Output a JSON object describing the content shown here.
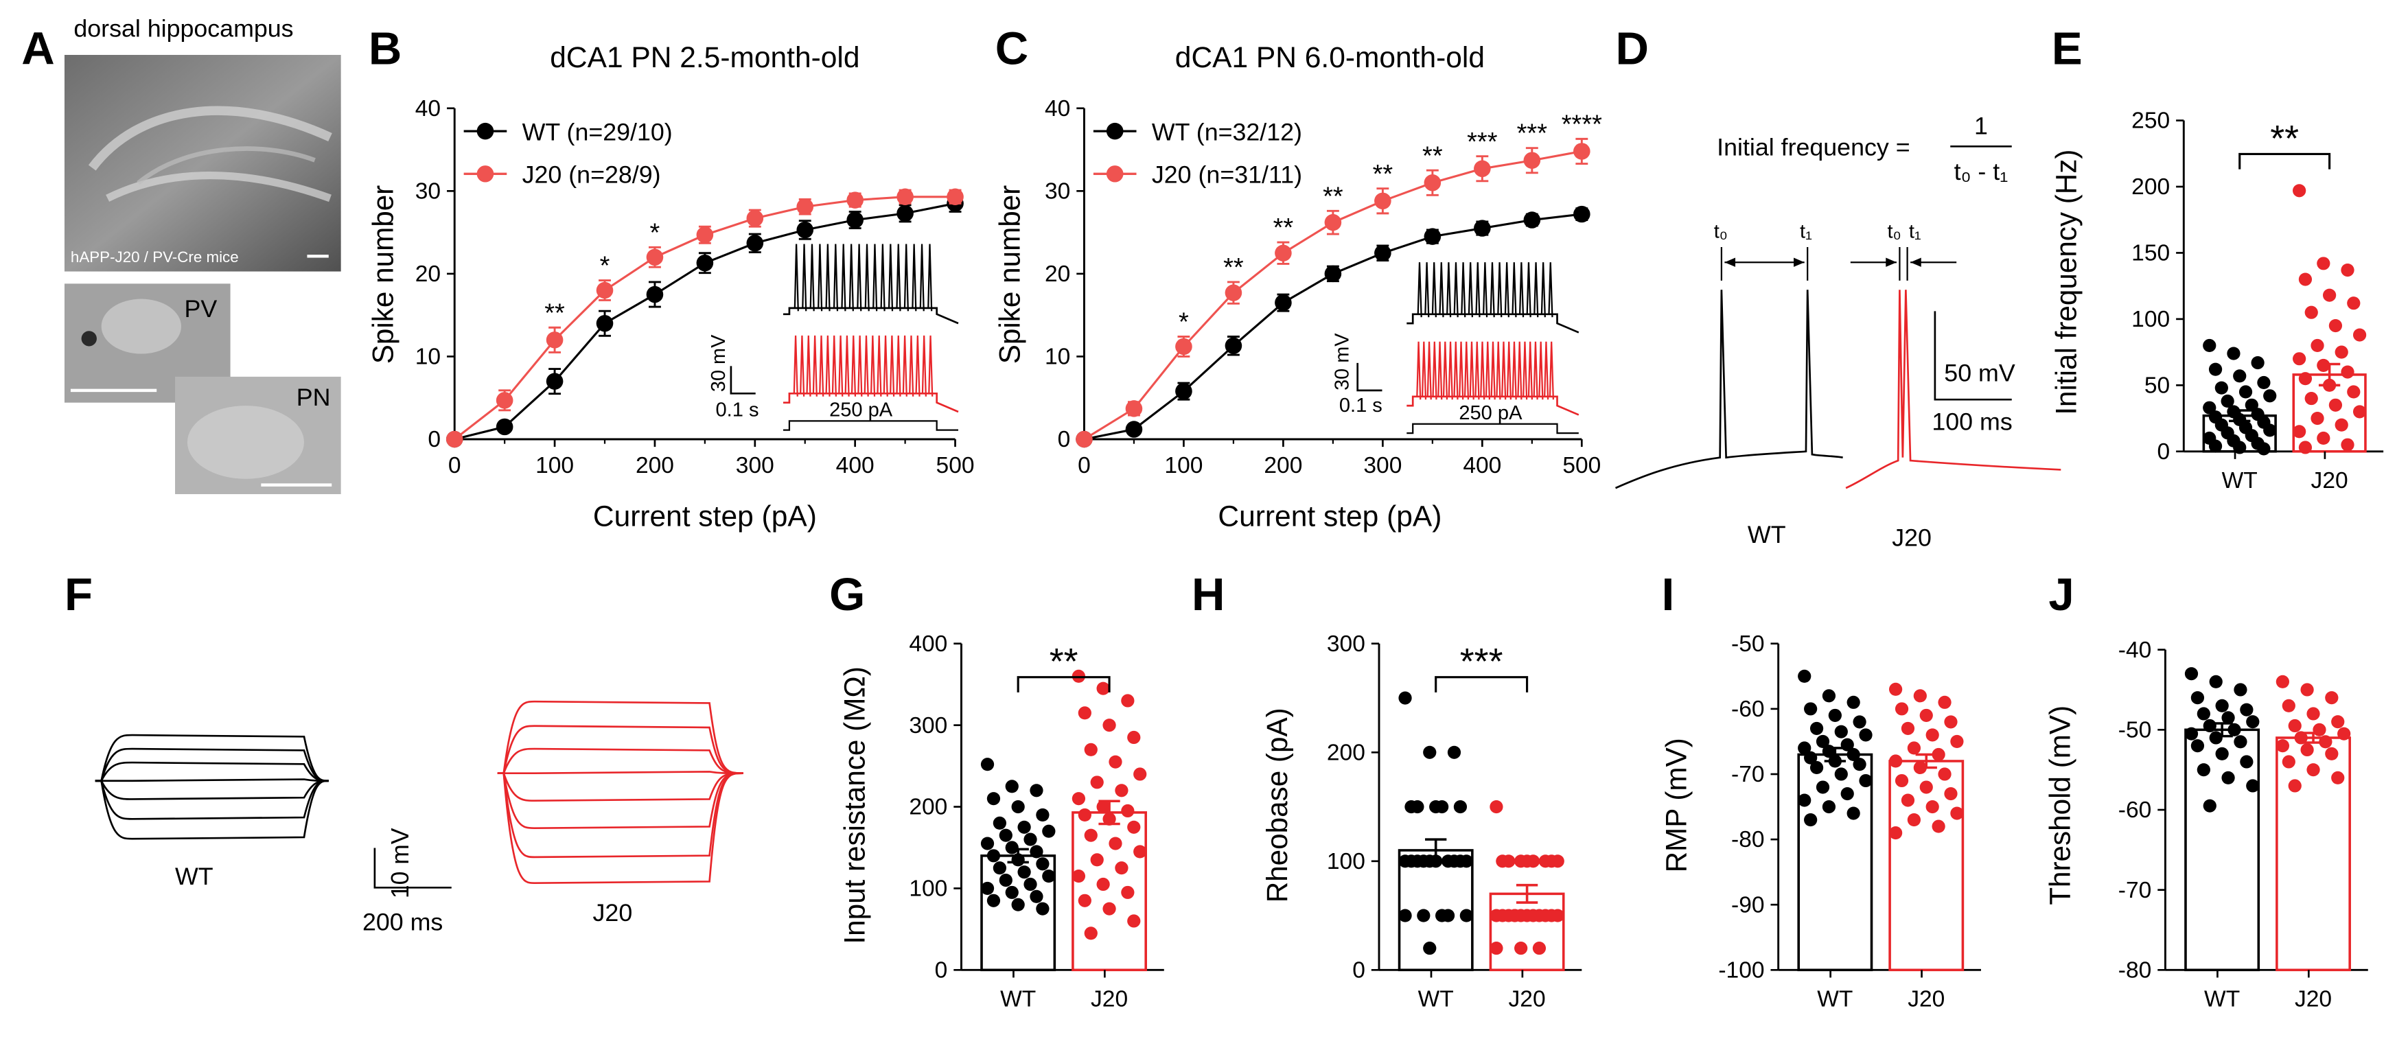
{
  "colors": {
    "wt": "#000000",
    "j20": "#e8262a",
    "j20_light": "#ef5350"
  },
  "panel_letters": [
    "A",
    "B",
    "C",
    "D",
    "E",
    "F",
    "G",
    "H",
    "I",
    "J"
  ],
  "panel_a": {
    "title": "dorsal hippocampus",
    "caption": "hAPP-J20 / PV-Cre mice",
    "pv_label": "PV",
    "pn_label": "PN"
  },
  "panel_d": {
    "formula_left": "Initial frequency =",
    "formula_num": "1",
    "formula_den": "t₀ - t₁",
    "t0": "t₀",
    "t1": "t₁",
    "scale_v": "50 mV",
    "scale_t": "100 ms",
    "wt_label": "WT",
    "j20_label": "J20"
  },
  "panel_f": {
    "wt_label": "WT",
    "j20_label": "J20",
    "scale_v": "10 mV",
    "scale_t": "200 ms"
  },
  "chart_data": [
    {
      "panel": "B",
      "type": "line",
      "title": "dCA1 PN 2.5-month-old",
      "xlabel": "Current step (pA)",
      "ylabel": "Spike number",
      "xlim": [
        0,
        500
      ],
      "ylim": [
        0,
        40
      ],
      "xticks": [
        0,
        100,
        200,
        300,
        400,
        500
      ],
      "yticks": [
        0,
        10,
        20,
        30,
        40
      ],
      "x": [
        0,
        50,
        100,
        150,
        200,
        250,
        300,
        350,
        400,
        450,
        500
      ],
      "series": [
        {
          "name": "WT (n=29/10)",
          "values": [
            0,
            1.5,
            7,
            14,
            17.5,
            21.3,
            23.7,
            25.3,
            26.5,
            27.3,
            28.5
          ],
          "err": [
            0,
            0.5,
            1.5,
            1.5,
            1.5,
            1.2,
            1.1,
            1.1,
            1.0,
            1.0,
            1.0
          ]
        },
        {
          "name": "J20 (n=28/9)",
          "values": [
            0,
            4.7,
            12,
            18,
            22,
            24.7,
            26.7,
            28.1,
            28.9,
            29.3,
            29.3
          ],
          "err": [
            0,
            1.2,
            1.5,
            1.2,
            1.2,
            1.0,
            1.0,
            0.9,
            0.8,
            0.8,
            0.8
          ]
        }
      ],
      "annotations": [
        {
          "x": 100,
          "text": "**"
        },
        {
          "x": 150,
          "text": "*"
        },
        {
          "x": 200,
          "text": "*"
        }
      ],
      "inset": {
        "scale_v": "30 mV",
        "scale_t": "0.1 s",
        "step": "250 pA"
      }
    },
    {
      "panel": "C",
      "type": "line",
      "title": "dCA1 PN 6.0-month-old",
      "xlabel": "Current step (pA)",
      "ylabel": "Spike number",
      "xlim": [
        0,
        500
      ],
      "ylim": [
        0,
        40
      ],
      "xticks": [
        0,
        100,
        200,
        300,
        400,
        500
      ],
      "yticks": [
        0,
        10,
        20,
        30,
        40
      ],
      "x": [
        0,
        50,
        100,
        150,
        200,
        250,
        300,
        350,
        400,
        450,
        500
      ],
      "series": [
        {
          "name": "WT (n=32/12)",
          "values": [
            0,
            1.2,
            5.8,
            11.3,
            16.5,
            20,
            22.5,
            24.5,
            25.5,
            26.5,
            27.2
          ],
          "err": [
            0,
            0.3,
            1.0,
            1.1,
            1.0,
            0.9,
            0.9,
            0.8,
            0.8,
            0.7,
            0.7
          ]
        },
        {
          "name": "J20 (n=31/11)",
          "values": [
            0,
            3.7,
            11.2,
            17.7,
            22.5,
            26.2,
            28.8,
            31,
            32.7,
            33.7,
            34.8
          ],
          "err": [
            0,
            0.8,
            1.2,
            1.3,
            1.3,
            1.4,
            1.5,
            1.5,
            1.5,
            1.5,
            1.5
          ]
        }
      ],
      "annotations": [
        {
          "x": 100,
          "text": "*"
        },
        {
          "x": 150,
          "text": "**"
        },
        {
          "x": 200,
          "text": "**"
        },
        {
          "x": 250,
          "text": "**"
        },
        {
          "x": 300,
          "text": "**"
        },
        {
          "x": 350,
          "text": "**"
        },
        {
          "x": 400,
          "text": "***"
        },
        {
          "x": 450,
          "text": "***"
        },
        {
          "x": 500,
          "text": "****"
        }
      ],
      "inset": {
        "scale_v": "30 mV",
        "scale_t": "0.1 s",
        "step": "250 pA"
      }
    },
    {
      "panel": "E",
      "type": "bar",
      "ylabel": "Initial frequency (Hz)",
      "ylim": [
        0,
        250
      ],
      "yticks": [
        0,
        50,
        100,
        150,
        200,
        250
      ],
      "categories": [
        "WT",
        "J20"
      ],
      "values": [
        27,
        58
      ],
      "err": [
        4,
        8
      ],
      "significance": "**",
      "points": [
        [
          80,
          74,
          67,
          62,
          57,
          52,
          48,
          45,
          42,
          38,
          35,
          33,
          30,
          28,
          26,
          24,
          22,
          20,
          18,
          16,
          14,
          12,
          10,
          8,
          6,
          4,
          3,
          2
        ],
        [
          197,
          142,
          137,
          130,
          118,
          112,
          105,
          95,
          88,
          80,
          75,
          70,
          65,
          60,
          55,
          50,
          45,
          40,
          35,
          30,
          25,
          20,
          15,
          10,
          5,
          3
        ]
      ]
    },
    {
      "panel": "G",
      "type": "bar",
      "ylabel": "Input resistance (MΩ)",
      "ylim": [
        0,
        400
      ],
      "yticks": [
        0,
        100,
        200,
        300,
        400
      ],
      "categories": [
        "WT",
        "J20"
      ],
      "values": [
        140,
        193
      ],
      "err": [
        8,
        14
      ],
      "significance": "**",
      "points": [
        [
          252,
          225,
          220,
          210,
          200,
          190,
          180,
          175,
          170,
          165,
          160,
          155,
          150,
          145,
          140,
          135,
          130,
          125,
          120,
          115,
          110,
          105,
          100,
          95,
          90,
          85,
          80,
          75
        ],
        [
          360,
          345,
          330,
          315,
          300,
          285,
          270,
          255,
          240,
          230,
          220,
          210,
          200,
          195,
          190,
          185,
          175,
          165,
          155,
          145,
          135,
          125,
          115,
          105,
          95,
          85,
          75,
          60,
          45
        ]
      ]
    },
    {
      "panel": "H",
      "type": "bar",
      "ylabel": "Rheobase (pA)",
      "ylim": [
        0,
        300
      ],
      "yticks": [
        0,
        100,
        200,
        300
      ],
      "categories": [
        "WT",
        "J20"
      ],
      "values": [
        110,
        70
      ],
      "err": [
        10,
        8
      ],
      "significance": "***",
      "points": [
        [
          250,
          200,
          200,
          150,
          150,
          150,
          150,
          150,
          100,
          100,
          100,
          100,
          100,
          100,
          100,
          100,
          100,
          100,
          50,
          50,
          50,
          50,
          50,
          20
        ],
        [
          150,
          100,
          100,
          100,
          100,
          100,
          100,
          100,
          100,
          50,
          50,
          50,
          50,
          50,
          50,
          50,
          50,
          50,
          50,
          50,
          50,
          20,
          20,
          20
        ]
      ]
    },
    {
      "panel": "I",
      "type": "bar",
      "ylabel": "RMP (mV)",
      "ylim": [
        -100,
        -50
      ],
      "yticks": [
        -100,
        -90,
        -80,
        -70,
        -60,
        -50
      ],
      "categories": [
        "WT",
        "J20"
      ],
      "values": [
        -67,
        -68
      ],
      "err": [
        1,
        1
      ],
      "points": [
        [
          -55,
          -58,
          -59,
          -60,
          -61,
          -62,
          -63,
          -63.5,
          -64,
          -65,
          -65.5,
          -66,
          -66.5,
          -67,
          -67.5,
          -68,
          -68.5,
          -69,
          -70,
          -71,
          -72,
          -73,
          -74,
          -75,
          -76,
          -77
        ],
        [
          -57,
          -58,
          -59,
          -60,
          -61,
          -62,
          -63,
          -64,
          -65,
          -66,
          -67,
          -68,
          -69,
          -70,
          -71,
          -72,
          -73,
          -74,
          -75,
          -76,
          -77,
          -78,
          -79
        ]
      ]
    },
    {
      "panel": "J",
      "type": "bar",
      "ylabel": "Threshold (mV)",
      "ylim": [
        -80,
        -40
      ],
      "yticks": [
        -80,
        -70,
        -60,
        -50,
        -40
      ],
      "categories": [
        "WT",
        "J20"
      ],
      "values": [
        -50,
        -51
      ],
      "err": [
        0.8,
        0.6
      ],
      "points": [
        [
          -43,
          -44,
          -45,
          -46,
          -47,
          -47.5,
          -48,
          -48.5,
          -49,
          -49.5,
          -50,
          -50.5,
          -51,
          -51.5,
          -52,
          -53,
          -54,
          -55,
          -56,
          -57,
          -59.5
        ],
        [
          -44,
          -45,
          -46,
          -47,
          -48,
          -49,
          -49.5,
          -50,
          -50.5,
          -51,
          -51.5,
          -52,
          -52.5,
          -53,
          -54,
          -55,
          -56,
          -57
        ]
      ]
    }
  ]
}
